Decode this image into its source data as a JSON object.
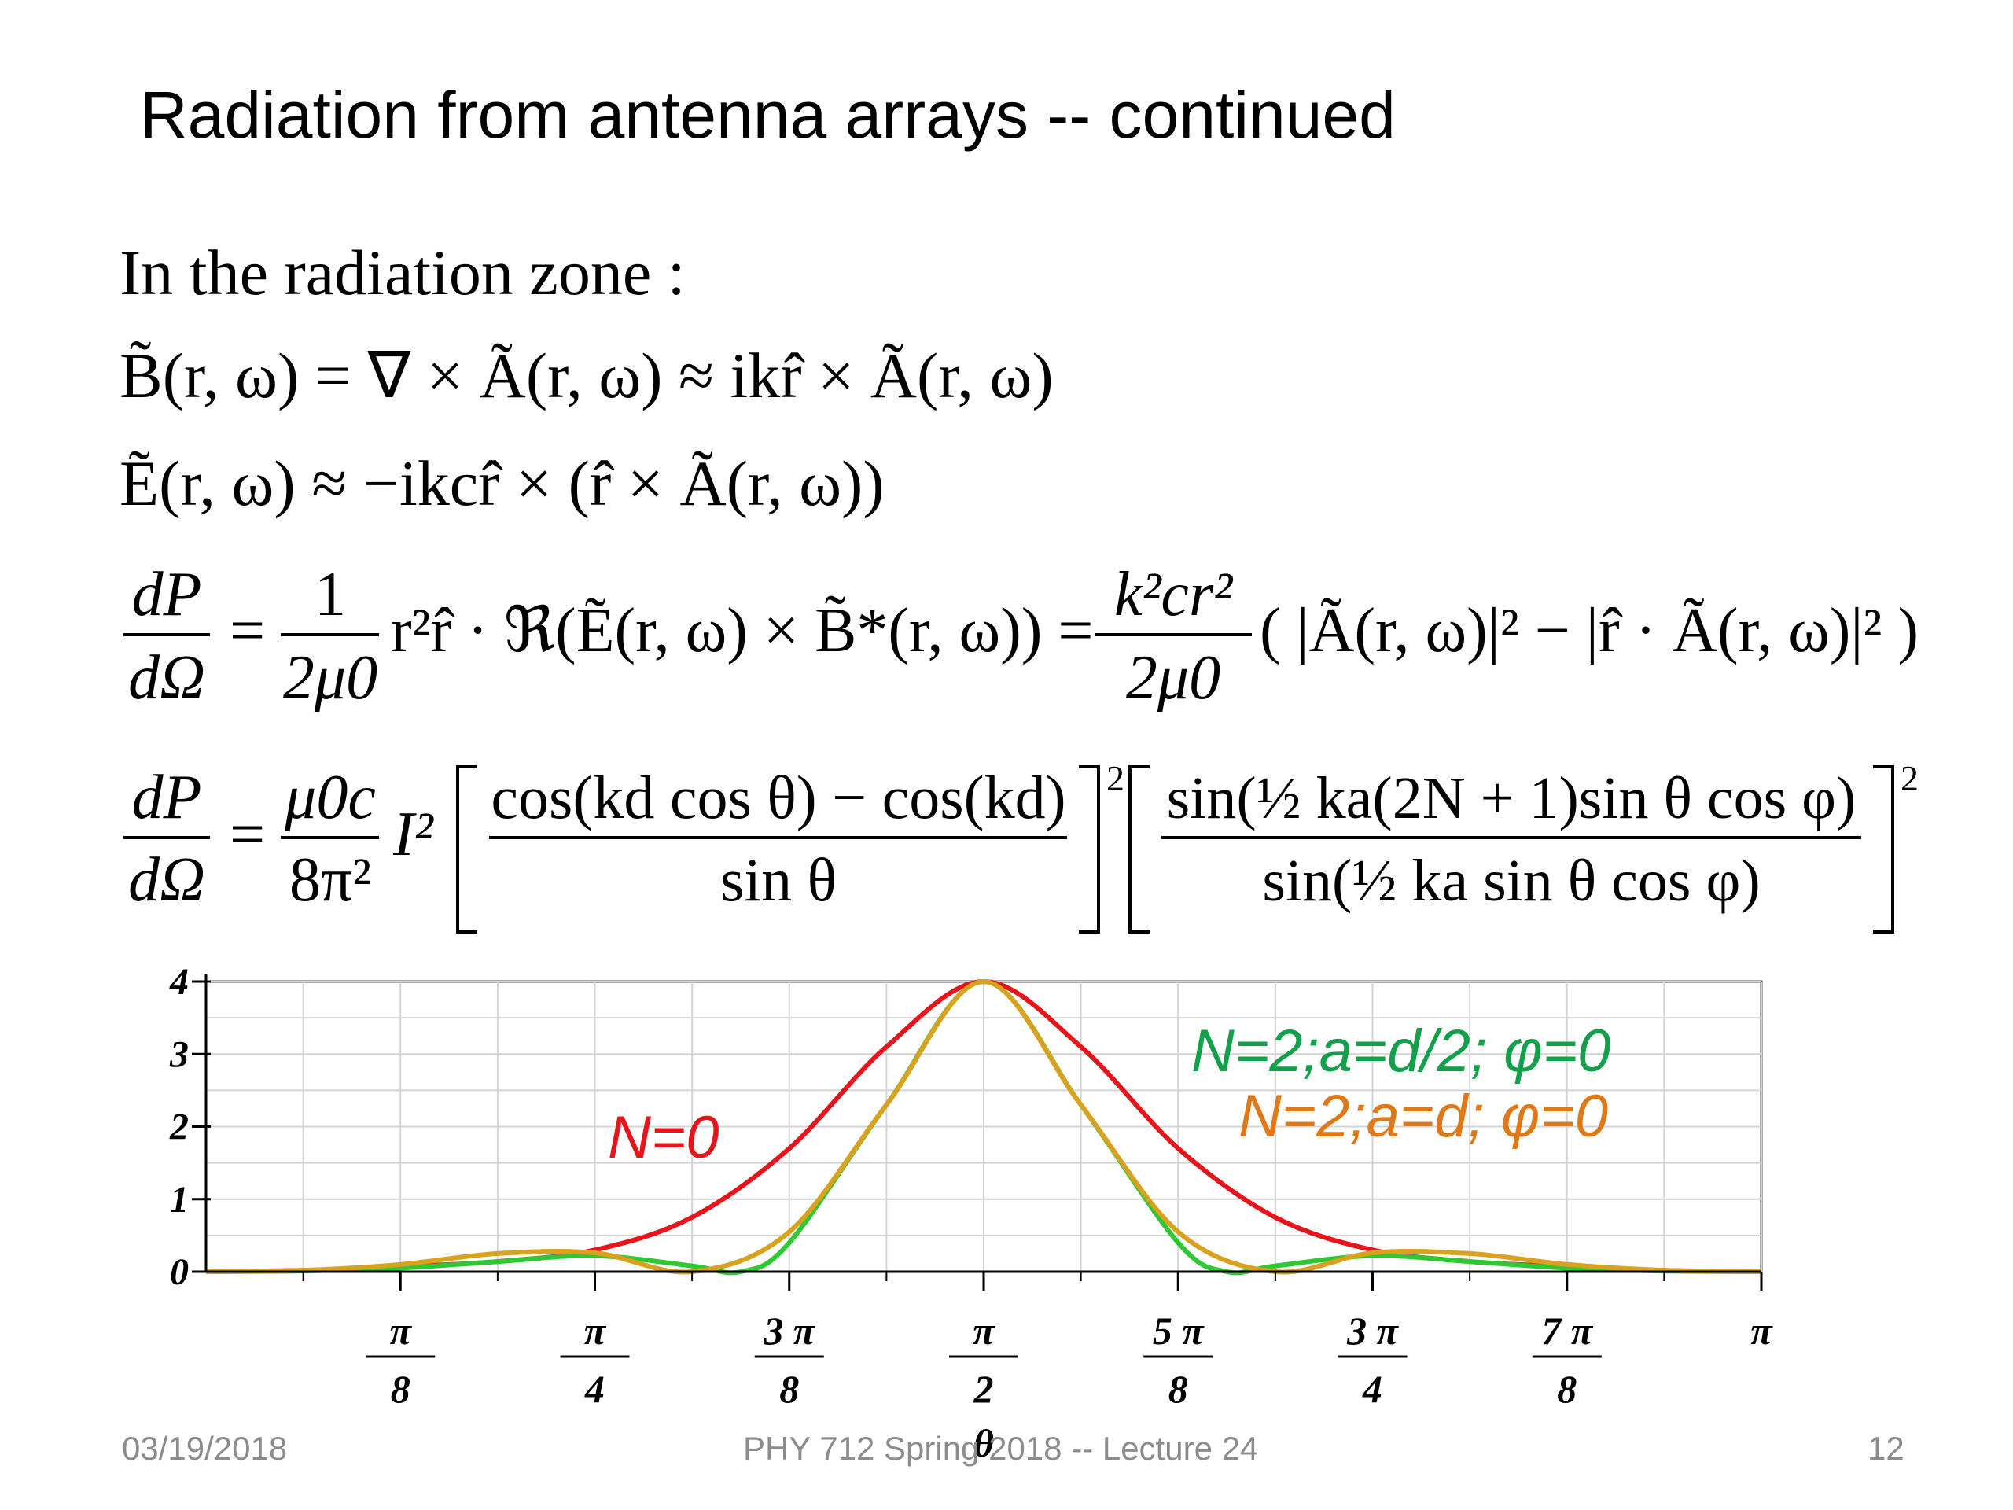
{
  "slide": {
    "title": "Radiation from antenna arrays -- continued",
    "intro": "In the radiation zone :",
    "footer_date": "03/19/2018",
    "footer_course": "PHY 712  Spring 2018 -- Lecture 24",
    "footer_page": "12"
  },
  "equations": {
    "b_field": "B̃(r, ω) = ∇ × Ã(r, ω) ≈ ikr̂ × Ã(r, ω)",
    "e_field": "Ẽ(r, ω) ≈ −ikcr̂ × (r̂ × Ã(r, ω))",
    "power_lhs_num": "dP",
    "power_lhs_den": "dΩ",
    "power_coef_num": "1",
    "power_coef_den": "2μ0",
    "power_middle": "r²r̂ · ℜ(Ẽ(r, ω) × B̃*(r, ω)) =",
    "power_coef2_num": "k²cr²",
    "power_coef2_den": "2μ0",
    "power_rhs": "( |Ã(r, ω)|² − |r̂ · Ã(r, ω)|² )",
    "array_lhs_num": "dP",
    "array_lhs_den": "dΩ",
    "array_coef_num": "μ0c",
    "array_coef_den": "8π²",
    "array_current": "I²",
    "array_f1_num": "cos(kd cos θ) − cos(kd)",
    "array_f1_den": "sin θ",
    "array_f2_num": "sin(½ ka(2N + 1)sin θ cos φ)",
    "array_f2_den": "sin(½ ka sin θ cos φ)",
    "exp2": "2"
  },
  "chart_data": {
    "type": "line",
    "xlabel": "θ",
    "ylabel": "",
    "xlim": [
      0,
      3.14159
    ],
    "ylim": [
      0,
      4
    ],
    "grid": true,
    "y_ticks": [
      0,
      1,
      2,
      3,
      4
    ],
    "y_tick_labels": [
      "0",
      "1",
      "2",
      "3",
      "4"
    ],
    "x_ticks": [
      0.3927,
      0.7854,
      1.1781,
      1.5708,
      1.9635,
      2.3562,
      2.7489,
      3.1416
    ],
    "x_tick_labels": [
      {
        "num": "π",
        "den": "8"
      },
      {
        "num": "π",
        "den": "4"
      },
      {
        "num": "3 π",
        "den": "8"
      },
      {
        "num": "π",
        "den": "2"
      },
      {
        "num": "5 π",
        "den": "8"
      },
      {
        "num": "3 π",
        "den": "4"
      },
      {
        "num": "7 π",
        "den": "8"
      },
      {
        "num": "π",
        "den": ""
      }
    ],
    "series": [
      {
        "name": "N=0",
        "color": "#e8141c",
        "x": [
          0,
          0.1963,
          0.3927,
          0.589,
          0.7854,
          0.9817,
          1.1781,
          1.3744,
          1.5708,
          1.7671,
          1.9635,
          2.1598,
          2.3562,
          2.5525,
          2.7489,
          2.9452,
          3.1416
        ],
        "y": [
          0,
          0.02,
          0.07,
          0.14,
          0.3,
          0.75,
          1.7,
          3.1,
          4.0,
          3.1,
          1.7,
          0.75,
          0.3,
          0.14,
          0.07,
          0.02,
          0
        ]
      },
      {
        "name": "N=2;a=d/2; φ=0",
        "color": "#2ec832",
        "x": [
          0,
          0.1963,
          0.3927,
          0.589,
          0.7854,
          0.9817,
          1.08,
          1.1781,
          1.3744,
          1.5708,
          1.7671,
          1.9635,
          2.0616,
          2.1598,
          2.3562,
          2.5525,
          2.7489,
          2.9452,
          3.1416
        ],
        "y": [
          0,
          0.01,
          0.05,
          0.14,
          0.22,
          0.08,
          0.0,
          0.4,
          2.3,
          4.0,
          2.3,
          0.4,
          0.0,
          0.08,
          0.22,
          0.14,
          0.05,
          0.01,
          0
        ]
      },
      {
        "name": "N=2;a=d; φ=0",
        "color": "#d9a21e",
        "x": [
          0,
          0.1963,
          0.3927,
          0.589,
          0.7854,
          0.9817,
          1.1781,
          1.3744,
          1.5708,
          1.7671,
          1.9635,
          2.1598,
          2.3562,
          2.5525,
          2.7489,
          2.9452,
          3.1416
        ],
        "y": [
          0,
          0.02,
          0.1,
          0.25,
          0.26,
          0.0,
          0.55,
          2.3,
          4.0,
          2.3,
          0.55,
          0.0,
          0.26,
          0.25,
          0.1,
          0.02,
          0
        ]
      }
    ],
    "annotations": [
      {
        "text": "N=0",
        "color": "#e8141c"
      },
      {
        "text": "N=2;a=d/2; φ=0",
        "color": "#12a04a"
      },
      {
        "text": "N=2;a=d; φ=0",
        "color": "#e07818"
      }
    ]
  }
}
